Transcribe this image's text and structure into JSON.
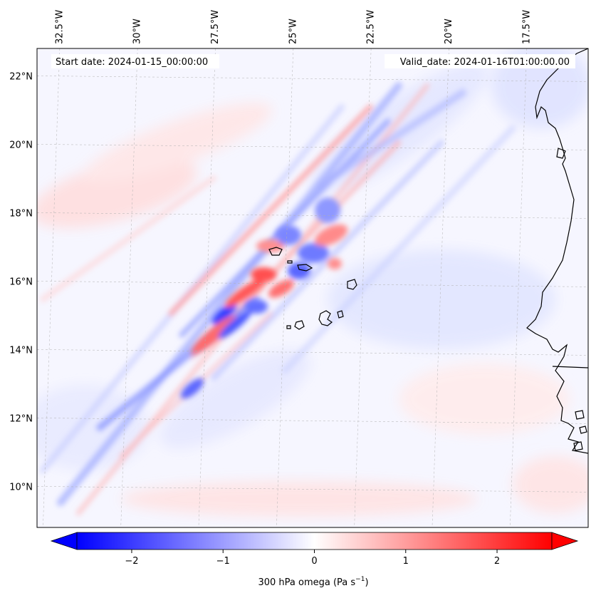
{
  "map": {
    "extent": {
      "lon_min": -33.0,
      "lon_max": -15.3,
      "lat_min": 8.8,
      "lat_max": 22.8
    },
    "lon_ticks": [
      {
        "value": -32.5,
        "label": "32.5°W"
      },
      {
        "value": -30.0,
        "label": "30°W"
      },
      {
        "value": -27.5,
        "label": "27.5°W"
      },
      {
        "value": -25.0,
        "label": "25°W"
      },
      {
        "value": -22.5,
        "label": "22.5°W"
      },
      {
        "value": -20.0,
        "label": "20°W"
      },
      {
        "value": -17.5,
        "label": "17.5°W"
      }
    ],
    "lat_ticks": [
      {
        "value": 22,
        "label": "22°N"
      },
      {
        "value": 20,
        "label": "20°N"
      },
      {
        "value": 18,
        "label": "18°N"
      },
      {
        "value": 16,
        "label": "16°N"
      },
      {
        "value": 14,
        "label": "14°N"
      },
      {
        "value": 12,
        "label": "12°N"
      },
      {
        "value": 10,
        "label": "10°N"
      }
    ],
    "start_date": "Start date: 2024-01-15_00:00:00",
    "valid_date": "Valid_date: 2024-01-16T01:00:00.00",
    "gridlines": true
  },
  "colorbar": {
    "cmap": "bwr",
    "min": -2.6,
    "max": 2.6,
    "ticks": [
      {
        "value": -2,
        "label": "−2"
      },
      {
        "value": -1,
        "label": "−1"
      },
      {
        "value": 0,
        "label": "0"
      },
      {
        "value": 1,
        "label": "1"
      },
      {
        "value": 2,
        "label": "2"
      }
    ],
    "label_main": "300 hPa omega (Pa s",
    "label_sup": "−1",
    "label_end": ")",
    "extend": "both"
  },
  "colors": {
    "negative": "#0000ff",
    "neutral": "#ffffff",
    "positive": "#ff0000",
    "coastline": "#000000"
  }
}
